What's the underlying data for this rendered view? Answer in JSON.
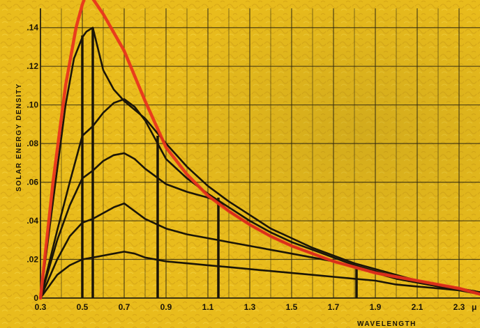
{
  "chart_data": {
    "type": "line",
    "title": "",
    "xlabel": "WAVELENGTH",
    "ylabel": "SOLAR ENERGY DENSITY",
    "x_unit_label": "μ",
    "xlim": [
      0.3,
      2.4
    ],
    "ylim": [
      0,
      0.15
    ],
    "grid": true,
    "legend": "none",
    "x_ticks": [
      "0.3",
      "0.5",
      "0.7",
      "0.9",
      "1.1",
      "1.3",
      "1.5",
      "1.7",
      "1.9",
      "2.1",
      "2.3"
    ],
    "x_tick_values": [
      0.3,
      0.5,
      0.7,
      0.9,
      1.1,
      1.3,
      1.5,
      1.7,
      1.9,
      2.1,
      2.3
    ],
    "y_ticks": [
      "0",
      ".02",
      ".04",
      ".06",
      ".08",
      ".10",
      ".12",
      ".14"
    ],
    "y_tick_values": [
      0,
      0.02,
      0.04,
      0.06,
      0.08,
      0.1,
      0.12,
      0.14
    ],
    "colors": {
      "background": "#e9bc1c",
      "grid": "#2a2410",
      "red_curve": "#e8321c",
      "black_curves": "#1b1508"
    },
    "series": [
      {
        "color": "#e8321c",
        "x": [
          0.3,
          0.36,
          0.42,
          0.47,
          0.5,
          0.52,
          0.55,
          0.6,
          0.7,
          0.8,
          0.9,
          1.0,
          1.1,
          1.2,
          1.3,
          1.4,
          1.5,
          1.6,
          1.7,
          1.8,
          1.9,
          2.0,
          2.1,
          2.2,
          2.3,
          2.4
        ],
        "y": [
          0.0,
          0.06,
          0.11,
          0.14,
          0.152,
          0.158,
          0.155,
          0.147,
          0.128,
          0.102,
          0.078,
          0.064,
          0.053,
          0.045,
          0.038,
          0.032,
          0.027,
          0.023,
          0.019,
          0.016,
          0.013,
          0.011,
          0.009,
          0.007,
          0.005,
          0.002
        ]
      },
      {
        "color": "#1b1508",
        "x": [
          0.3,
          0.36,
          0.42,
          0.46,
          0.5,
          0.52,
          0.55,
          0.6,
          0.65,
          0.7,
          0.8,
          0.9,
          1.0,
          1.1,
          1.2,
          1.3,
          1.4,
          1.5,
          1.6,
          1.7,
          1.8,
          1.9,
          2.0,
          2.1,
          2.2,
          2.3,
          2.4
        ],
        "y": [
          0.0,
          0.05,
          0.1,
          0.124,
          0.135,
          0.138,
          0.14,
          0.118,
          0.108,
          0.102,
          0.093,
          0.08,
          0.068,
          0.058,
          0.05,
          0.043,
          0.036,
          0.031,
          0.026,
          0.022,
          0.018,
          0.015,
          0.012,
          0.009,
          0.007,
          0.005,
          0.003
        ]
      },
      {
        "color": "#1b1508",
        "x": [
          0.3,
          0.38,
          0.44,
          0.5,
          0.55,
          0.6,
          0.65,
          0.7,
          0.75,
          0.8,
          0.9,
          1.0,
          1.1,
          1.2,
          1.3,
          1.4,
          1.5,
          1.6,
          1.7,
          1.8,
          1.9,
          2.0,
          2.1,
          2.2,
          2.3,
          2.4
        ],
        "y": [
          0.0,
          0.035,
          0.06,
          0.084,
          0.089,
          0.096,
          0.101,
          0.103,
          0.099,
          0.092,
          0.072,
          0.062,
          0.054,
          0.047,
          0.04,
          0.034,
          0.029,
          0.025,
          0.021,
          0.017,
          0.014,
          0.011,
          0.009,
          0.007,
          0.005,
          0.003
        ]
      },
      {
        "color": "#1b1508",
        "x": [
          0.3,
          0.38,
          0.44,
          0.5,
          0.55,
          0.6,
          0.65,
          0.7,
          0.75,
          0.8,
          0.9,
          1.0,
          1.1,
          1.15,
          1.2,
          1.3,
          1.4,
          1.5,
          1.6,
          1.7,
          1.8,
          1.9,
          2.0,
          2.1,
          2.2,
          2.3,
          2.4
        ],
        "y": [
          0.0,
          0.03,
          0.048,
          0.062,
          0.066,
          0.071,
          0.074,
          0.075,
          0.072,
          0.067,
          0.059,
          0.055,
          0.052,
          0.05,
          0.045,
          0.038,
          0.032,
          0.027,
          0.023,
          0.019,
          0.016,
          0.013,
          0.01,
          0.008,
          0.006,
          0.004,
          0.002
        ]
      },
      {
        "color": "#1b1508",
        "x": [
          0.3,
          0.38,
          0.44,
          0.5,
          0.55,
          0.6,
          0.65,
          0.7,
          0.75,
          0.8,
          0.9,
          1.0,
          1.1,
          1.2,
          1.3,
          1.4,
          1.5,
          1.6,
          1.7,
          1.8,
          1.9,
          2.0,
          2.1,
          2.2,
          2.3,
          2.4
        ],
        "y": [
          0.0,
          0.02,
          0.032,
          0.039,
          0.041,
          0.044,
          0.047,
          0.049,
          0.045,
          0.041,
          0.036,
          0.033,
          0.031,
          0.029,
          0.027,
          0.025,
          0.023,
          0.021,
          0.019,
          0.016,
          0.013,
          0.011,
          0.009,
          0.007,
          0.005,
          0.003
        ]
      },
      {
        "color": "#1b1508",
        "x": [
          0.3,
          0.38,
          0.44,
          0.5,
          0.55,
          0.6,
          0.65,
          0.7,
          0.75,
          0.8,
          0.9,
          1.0,
          1.1,
          1.2,
          1.3,
          1.4,
          1.5,
          1.6,
          1.7,
          1.8,
          1.9,
          2.0,
          2.1,
          2.2,
          2.3,
          2.4
        ],
        "y": [
          0.0,
          0.012,
          0.017,
          0.02,
          0.021,
          0.022,
          0.023,
          0.024,
          0.023,
          0.021,
          0.019,
          0.018,
          0.017,
          0.016,
          0.015,
          0.014,
          0.013,
          0.012,
          0.011,
          0.01,
          0.009,
          0.007,
          0.006,
          0.005,
          0.004,
          0.003
        ]
      }
    ],
    "vertical_lines": [
      {
        "x": 0.5,
        "y": 0.136
      },
      {
        "x": 0.55,
        "y": 0.14
      },
      {
        "x": 0.86,
        "y": 0.084
      },
      {
        "x": 1.15,
        "y": 0.052
      },
      {
        "x": 1.81,
        "y": 0.017
      }
    ]
  }
}
